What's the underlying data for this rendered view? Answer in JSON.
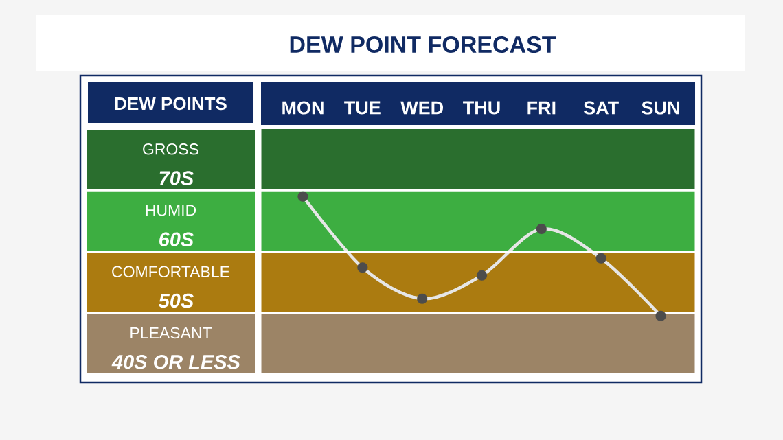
{
  "chart_data": {
    "type": "line",
    "title": "DEW POINT FORECAST",
    "ylabel": "DEW POINTS",
    "categories": [
      "MON",
      "TUE",
      "WED",
      "THU",
      "FRI",
      "SAT",
      "SUN"
    ],
    "series": [
      {
        "color": "#e6e6e6",
        "values": [
          69.0,
          57.4,
          52.3,
          56.1,
          63.7,
          58.9,
          49.5
        ]
      }
    ],
    "ylim": [
      40,
      80
    ],
    "yticks": [
      {
        "value": 70,
        "label": "70S"
      },
      {
        "value": 60,
        "label": "60S"
      },
      {
        "value": 50,
        "label": "50S"
      },
      {
        "value": 40,
        "label": "40S OR LESS"
      }
    ],
    "marker": "circle",
    "line_style": "solid",
    "grid": "y",
    "bands": [
      {
        "axis": "y",
        "from": 70,
        "to": 80,
        "color": "#2a6e2e"
      },
      {
        "axis": "y",
        "from": 60,
        "to": 70,
        "color": "#3dae41"
      },
      {
        "axis": "y",
        "from": 50,
        "to": 60,
        "color": "#ab7b10"
      },
      {
        "axis": "y",
        "from": 40,
        "to": 50,
        "color": "#9c8466"
      }
    ],
    "annotations": [
      "GROSS",
      "HUMID",
      "COMFORTABLE",
      "PLEASANT"
    ]
  }
}
